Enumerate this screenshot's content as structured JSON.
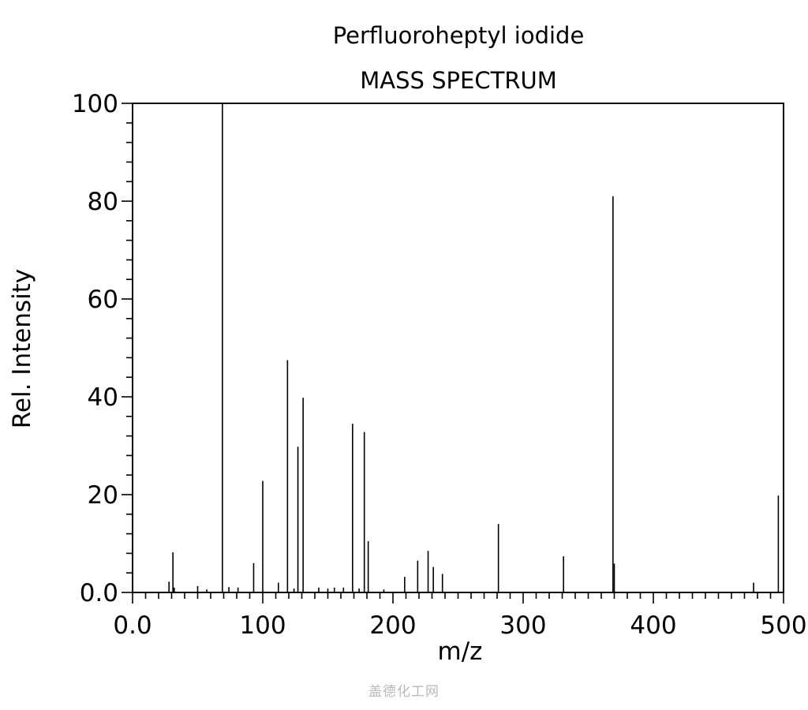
{
  "chart_data": {
    "type": "bar",
    "title": "Perfluoroheptyl iodide",
    "subtitle": "MASS SPECTRUM",
    "xlabel": "m/z",
    "ylabel": "Rel. Intensity",
    "xlim": [
      0,
      500
    ],
    "ylim": [
      0,
      100
    ],
    "xticks": [
      0,
      100,
      200,
      300,
      400,
      500
    ],
    "xtick_labels": [
      "0.0",
      "100",
      "200",
      "300",
      "400",
      "500"
    ],
    "yticks": [
      0,
      20,
      40,
      60,
      80,
      100
    ],
    "ytick_labels": [
      "0.0",
      "20",
      "40",
      "60",
      "80",
      "100"
    ],
    "grid": false,
    "legend": "none",
    "peaks": [
      {
        "mz": 28,
        "intensity": 2.2
      },
      {
        "mz": 31,
        "intensity": 8.2
      },
      {
        "mz": 32,
        "intensity": 1.0
      },
      {
        "mz": 50,
        "intensity": 1.3
      },
      {
        "mz": 57,
        "intensity": 0.6
      },
      {
        "mz": 69,
        "intensity": 100
      },
      {
        "mz": 74,
        "intensity": 1.1
      },
      {
        "mz": 81,
        "intensity": 1.0
      },
      {
        "mz": 93,
        "intensity": 6.0
      },
      {
        "mz": 100,
        "intensity": 22.8
      },
      {
        "mz": 112,
        "intensity": 2.0
      },
      {
        "mz": 119,
        "intensity": 47.5
      },
      {
        "mz": 124,
        "intensity": 0.8
      },
      {
        "mz": 127,
        "intensity": 29.8
      },
      {
        "mz": 131,
        "intensity": 39.8
      },
      {
        "mz": 143,
        "intensity": 1.0
      },
      {
        "mz": 150,
        "intensity": 0.8
      },
      {
        "mz": 155,
        "intensity": 1.0
      },
      {
        "mz": 162,
        "intensity": 1.0
      },
      {
        "mz": 169,
        "intensity": 34.5
      },
      {
        "mz": 174,
        "intensity": 0.8
      },
      {
        "mz": 178,
        "intensity": 32.8
      },
      {
        "mz": 181,
        "intensity": 10.5
      },
      {
        "mz": 193,
        "intensity": 0.6
      },
      {
        "mz": 209,
        "intensity": 3.2
      },
      {
        "mz": 219,
        "intensity": 6.5
      },
      {
        "mz": 227,
        "intensity": 8.5
      },
      {
        "mz": 231,
        "intensity": 5.2
      },
      {
        "mz": 238,
        "intensity": 3.8
      },
      {
        "mz": 281,
        "intensity": 14.0
      },
      {
        "mz": 331,
        "intensity": 7.4
      },
      {
        "mz": 369,
        "intensity": 81.0
      },
      {
        "mz": 370,
        "intensity": 5.9
      },
      {
        "mz": 477,
        "intensity": 2.0
      },
      {
        "mz": 496,
        "intensity": 19.8
      }
    ]
  },
  "watermark": "盖德化工网",
  "colors": {
    "line": "#000000",
    "background": "#ffffff",
    "watermark": "#b9b9b9"
  }
}
